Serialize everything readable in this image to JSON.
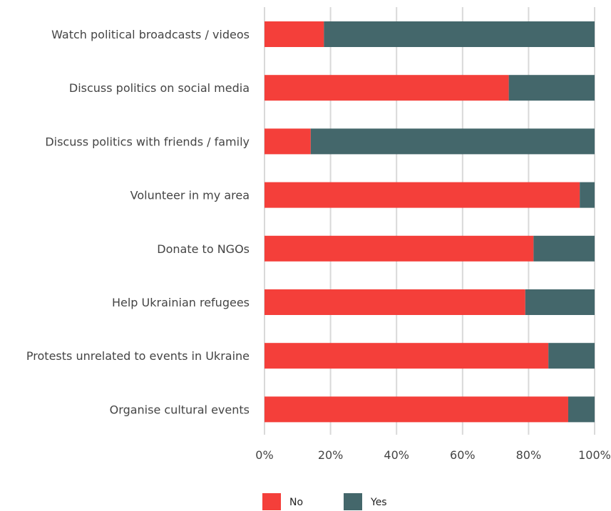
{
  "chart_data": {
    "type": "bar",
    "orientation": "horizontal",
    "stacked": "percent",
    "categories": [
      "Watch political broadcasts / videos",
      "Discuss politics on social media",
      "Discuss politics with friends / family",
      "Volunteer in my area",
      "Donate to NGOs",
      "Help Ukrainian refugees",
      "Protests unrelated to events in Ukraine",
      "Organise cultural events"
    ],
    "series": [
      {
        "name": "No",
        "color": "#f43f3a",
        "values": [
          18,
          74,
          14,
          95.5,
          81.5,
          79,
          86,
          92
        ]
      },
      {
        "name": "Yes",
        "color": "#44676b",
        "values": [
          82,
          26,
          86,
          4.5,
          18.5,
          21,
          14,
          8
        ]
      }
    ],
    "xlim": [
      0,
      100
    ],
    "xticks": [
      "0%",
      "20%",
      "40%",
      "60%",
      "80%",
      "100%"
    ],
    "grid": true,
    "legend_position": "bottom"
  }
}
